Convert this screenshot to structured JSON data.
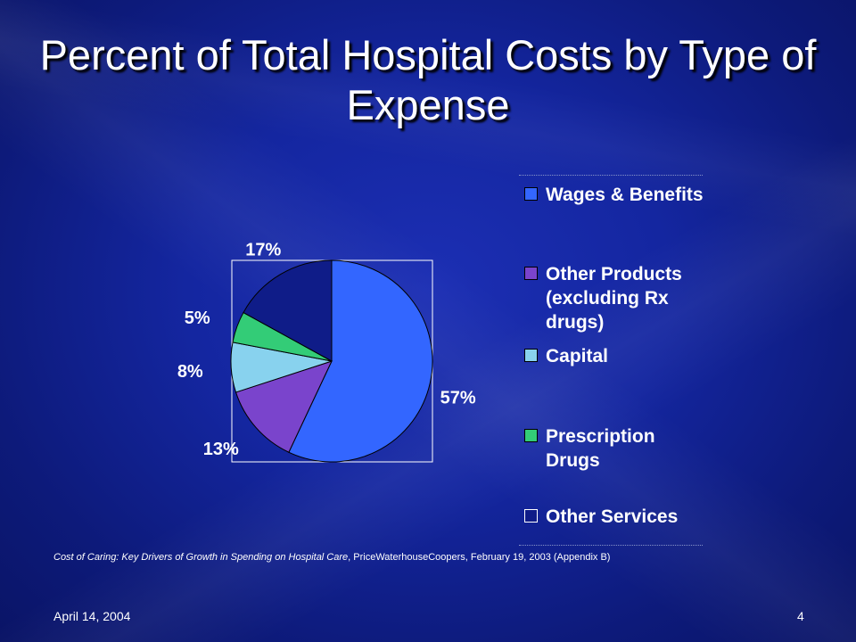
{
  "slide": {
    "title": "Percent of Total Hospital Costs by Type of Expense",
    "source_italic": "Cost of Caring: Key Drivers of Growth in Spending on Hospital Care",
    "source_rest": ", PriceWaterhouseCoopers, February 19, 2003 (Appendix B)",
    "date": "April 14, 2004",
    "page_number": "4"
  },
  "chart_data": {
    "type": "pie",
    "title": "",
    "start_angle_deg": 0,
    "direction": "clockwise",
    "legend_position": "right",
    "slices": [
      {
        "label": "Wages & Benefits",
        "value": 57,
        "display": "57%",
        "color": "#3366ff"
      },
      {
        "label": "Other Products (excluding Rx drugs)",
        "value": 13,
        "display": "13%",
        "color": "#7a44cc"
      },
      {
        "label": "Capital",
        "value": 8,
        "display": "8%",
        "color": "#88d2ee"
      },
      {
        "label": "Prescription Drugs",
        "value": 5,
        "display": "5%",
        "color": "#33cc77"
      },
      {
        "label": "Other Services",
        "value": 17,
        "display": "17%",
        "color": "#0f1c88"
      }
    ]
  }
}
